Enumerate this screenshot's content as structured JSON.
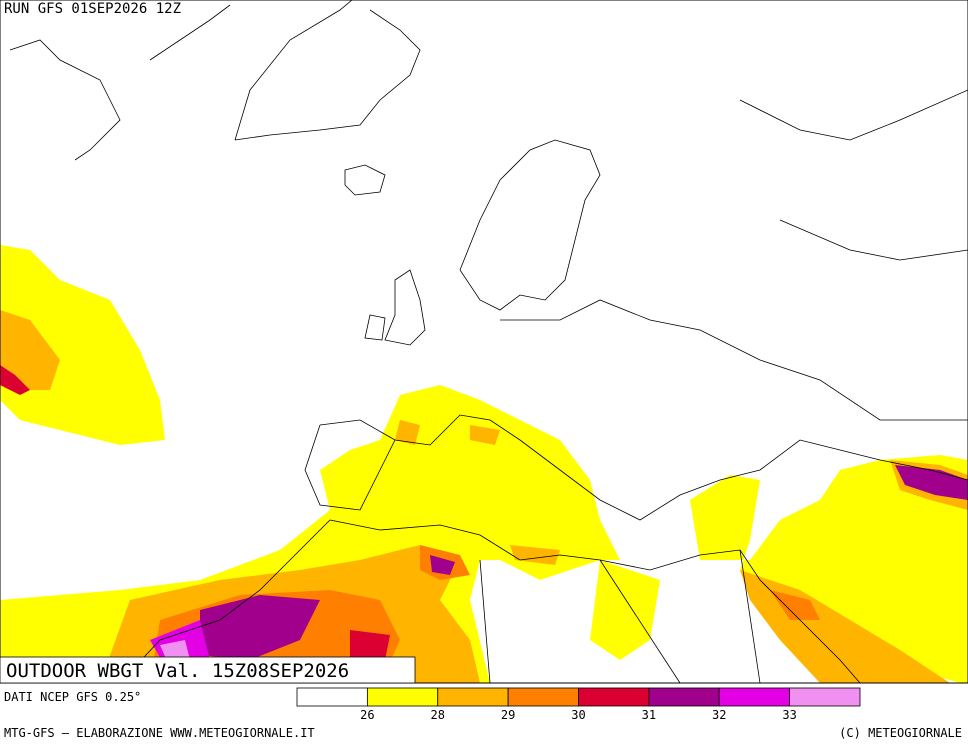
{
  "header": {
    "run": "RUN GFS 01SEP2026 12Z"
  },
  "map": {
    "title": "OUTDOOR WBGT Val. 15Z08SEP2026"
  },
  "legend": {
    "source": "DATI NCEP GFS 0.25°",
    "colors": [
      "#ffffff",
      "#ffff00",
      "#ffb400",
      "#ff7f00",
      "#dc0032",
      "#a0008c",
      "#e400e4",
      "#f090f0"
    ],
    "ticks": [
      26,
      28,
      29,
      30,
      31,
      32,
      33
    ]
  },
  "footer": {
    "left": "MTG-GFS — ELABORAZIONE WWW.METEOGIORNALE.IT",
    "right": "(C) METEOGIORNALE"
  }
}
